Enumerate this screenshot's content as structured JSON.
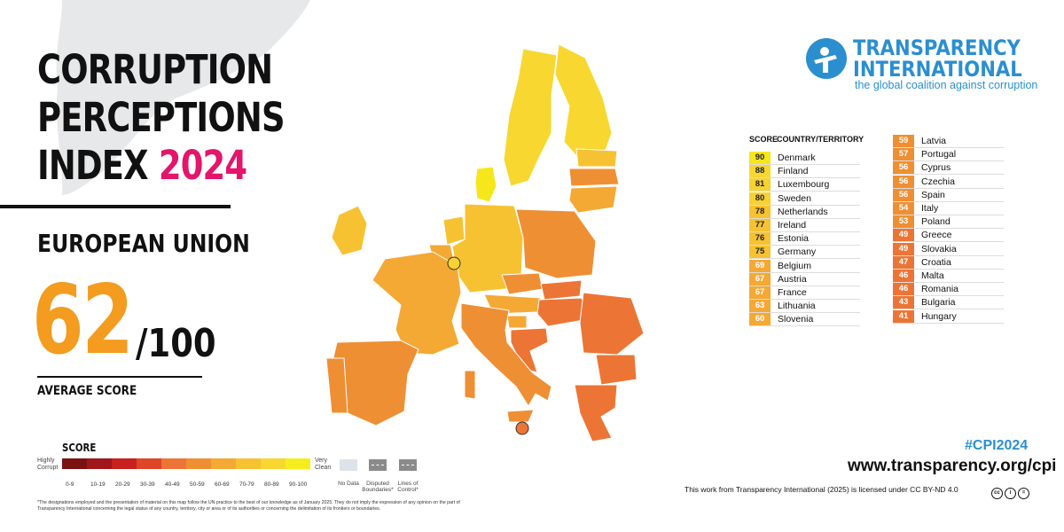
{
  "title": {
    "line1": "CORRUPTION",
    "line2": "PERCEPTIONS",
    "line3_prefix": "INDEX",
    "year": "2024"
  },
  "region": "EUROPEAN UNION",
  "average": {
    "score": "62",
    "out_of": "/100",
    "label": "AVERAGE SCORE"
  },
  "logo": {
    "line1": "TRANSPARENCY",
    "line2": "INTERNATIONAL",
    "tagline": "the global coalition against corruption"
  },
  "table": {
    "score_header": "SCORE",
    "country_header": "COUNTRY/TERRITORY",
    "rows": [
      {
        "score": "90",
        "country": "Denmark",
        "color": "#f6e61c"
      },
      {
        "score": "88",
        "country": "Finland",
        "color": "#f8d730"
      },
      {
        "score": "81",
        "country": "Luxembourg",
        "color": "#f7d230"
      },
      {
        "score": "80",
        "country": "Sweden",
        "color": "#f7d230"
      },
      {
        "score": "78",
        "country": "Netherlands",
        "color": "#f7c232"
      },
      {
        "score": "77",
        "country": "Ireland",
        "color": "#f7c232"
      },
      {
        "score": "76",
        "country": "Estonia",
        "color": "#f7c232"
      },
      {
        "score": "75",
        "country": "Germany",
        "color": "#f7c232"
      },
      {
        "score": "69",
        "country": "Belgium",
        "color": "#f4a934"
      },
      {
        "score": "67",
        "country": "Austria",
        "color": "#f4a934"
      },
      {
        "score": "67",
        "country": "France",
        "color": "#f4a934"
      },
      {
        "score": "63",
        "country": "Lithuania",
        "color": "#f4a934"
      },
      {
        "score": "60",
        "country": "Slovenia",
        "color": "#f4a934"
      },
      {
        "score": "59",
        "country": "Latvia",
        "color": "#ef8f33"
      },
      {
        "score": "57",
        "country": "Portugal",
        "color": "#ef8f33"
      },
      {
        "score": "56",
        "country": "Cyprus",
        "color": "#ef8f33"
      },
      {
        "score": "56",
        "country": "Czechia",
        "color": "#ef8f33"
      },
      {
        "score": "56",
        "country": "Spain",
        "color": "#ef8f33"
      },
      {
        "score": "54",
        "country": "Italy",
        "color": "#ef8f33"
      },
      {
        "score": "53",
        "country": "Poland",
        "color": "#ef8f33"
      },
      {
        "score": "49",
        "country": "Greece",
        "color": "#ec7535"
      },
      {
        "score": "49",
        "country": "Slovakia",
        "color": "#ec7535"
      },
      {
        "score": "47",
        "country": "Croatia",
        "color": "#ec7535"
      },
      {
        "score": "46",
        "country": "Malta",
        "color": "#ec7535"
      },
      {
        "score": "46",
        "country": "Romania",
        "color": "#ec7535"
      },
      {
        "score": "43",
        "country": "Bulgaria",
        "color": "#ec7535"
      },
      {
        "score": "41",
        "country": "Hungary",
        "color": "#ec7535"
      }
    ]
  },
  "legend": {
    "title": "SCORE",
    "left_end": "Highly Corrupt",
    "right_end": "Very Clean",
    "bins": [
      {
        "label": "0-9",
        "color": "#7a1212"
      },
      {
        "label": "10-19",
        "color": "#a0161b"
      },
      {
        "label": "20-29",
        "color": "#c8201f"
      },
      {
        "label": "30-39",
        "color": "#df4527"
      },
      {
        "label": "40-49",
        "color": "#ec7535"
      },
      {
        "label": "50-59",
        "color": "#ef8f33"
      },
      {
        "label": "60-69",
        "color": "#f4a934"
      },
      {
        "label": "70-79",
        "color": "#f7c232"
      },
      {
        "label": "80-89",
        "color": "#f8d730"
      },
      {
        "label": "90-100",
        "color": "#f6ee1c"
      }
    ],
    "extra": [
      {
        "label": "No Data",
        "color": "#dde3e8"
      },
      {
        "label": "Disputed Boundaries*",
        "color": "#8a8a8a"
      },
      {
        "label": "Lines of Control*",
        "color": "#8a8a8a"
      }
    ]
  },
  "footer": {
    "hashtag": "#CPI2024",
    "url": "www.transparency.org/cpi",
    "license": "This work from Transparency International (2025) is licensed under CC BY-ND 4.0",
    "disclaimer": "*The designations employed and the presentation of material on this map follow the UN practice to the best of our knowledge as of January 2025. They do not imply the expression of any opinion on the part of Transparency International concerning the legal status of any country, territory, city or area or of its authorities or concerning the delimitation of its frontiers or boundaries."
  },
  "map": {
    "colors": {
      "c90": "#f6e61c",
      "c80": "#f8d730",
      "c70": "#f7c232",
      "c60": "#f4a934",
      "c50": "#ef8f33",
      "c40": "#ec7535",
      "greenland": "#e6e8ea"
    }
  }
}
